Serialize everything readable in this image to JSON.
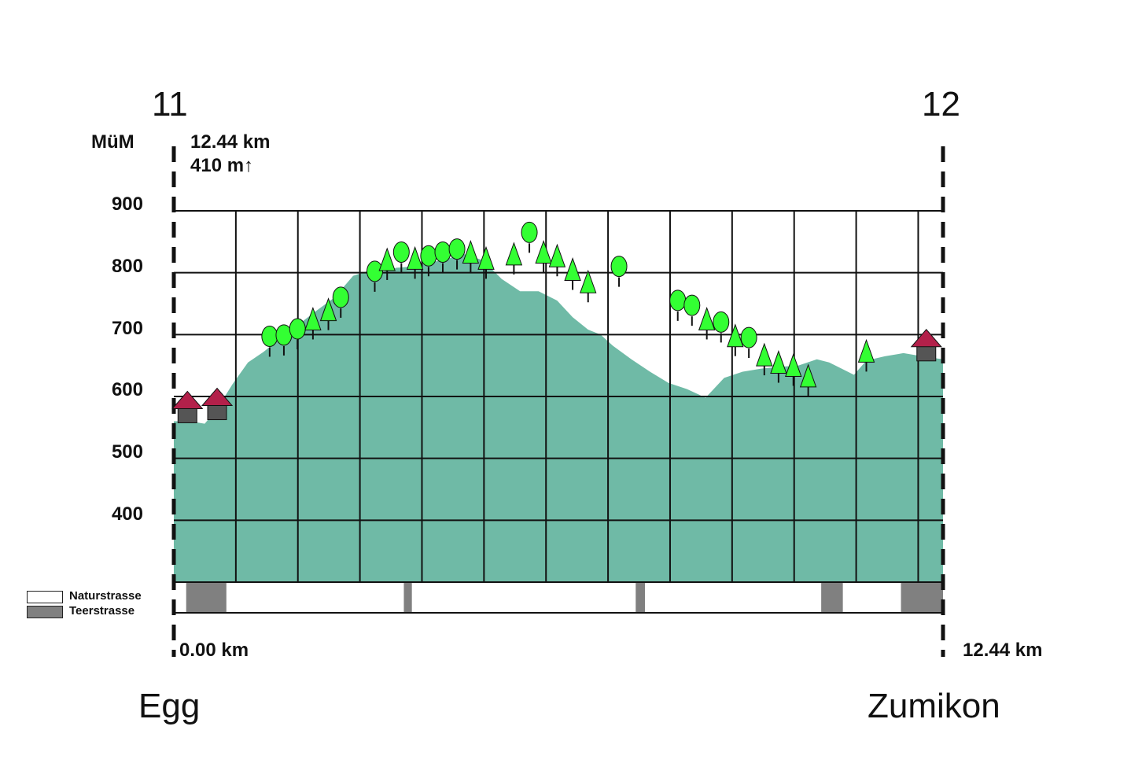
{
  "chart_data": {
    "type": "area",
    "title": "",
    "stage_start": "11",
    "stage_end": "12",
    "ylabel": "MüM",
    "distance_label": "12.44 km",
    "ascent_label": "410 m↑",
    "yticks": [
      "900",
      "800",
      "700",
      "600",
      "500",
      "400"
    ],
    "ylim": [
      300,
      900
    ],
    "xlim": [
      0,
      12.44
    ],
    "x_start_label": "0.00 km",
    "x_end_label": "12.44 km",
    "start_place": "Egg",
    "end_place": "Zumikon",
    "grid": true,
    "profile": {
      "x": [
        0,
        0.25,
        0.5,
        0.7,
        0.95,
        1.2,
        1.45,
        1.7,
        2.0,
        2.3,
        2.6,
        2.9,
        3.15,
        3.4,
        3.6,
        3.85,
        4.1,
        4.4,
        4.7,
        5.0,
        5.3,
        5.6,
        5.9,
        6.2,
        6.45,
        6.7,
        6.9,
        7.1,
        7.4,
        7.7,
        8.0,
        8.3,
        8.6,
        8.9,
        9.2,
        9.5,
        9.8,
        10.1,
        10.4,
        10.6,
        10.8,
        11.0,
        11.2,
        11.5,
        11.8,
        12.1,
        12.44
      ],
      "elevation": [
        560,
        560,
        556,
        580,
        620,
        655,
        672,
        692,
        715,
        738,
        760,
        795,
        803,
        802,
        808,
        810,
        815,
        822,
        830,
        820,
        790,
        770,
        770,
        755,
        728,
        708,
        700,
        682,
        660,
        640,
        622,
        612,
        598,
        630,
        640,
        645,
        648,
        650,
        660,
        655,
        645,
        635,
        658,
        665,
        670,
        665,
        660
      ]
    },
    "road_surface": {
      "legend": [
        "Naturstrasse",
        "Teerstrasse"
      ],
      "teerstrasse_segments_km": [
        [
          0.2,
          0.85
        ],
        [
          3.72,
          3.85
        ],
        [
          7.47,
          7.62
        ],
        [
          10.47,
          10.82
        ],
        [
          11.76,
          12.44
        ]
      ]
    },
    "trees": [
      {
        "km": 1.55,
        "elev": 682,
        "kind": "deciduous"
      },
      {
        "km": 1.78,
        "elev": 684,
        "kind": "deciduous"
      },
      {
        "km": 2.0,
        "elev": 694,
        "kind": "deciduous"
      },
      {
        "km": 2.25,
        "elev": 710,
        "kind": "conifer"
      },
      {
        "km": 2.5,
        "elev": 725,
        "kind": "conifer"
      },
      {
        "km": 2.7,
        "elev": 745,
        "kind": "deciduous"
      },
      {
        "km": 3.25,
        "elev": 787,
        "kind": "deciduous"
      },
      {
        "km": 3.45,
        "elev": 806,
        "kind": "conifer"
      },
      {
        "km": 3.68,
        "elev": 818,
        "kind": "deciduous"
      },
      {
        "km": 3.9,
        "elev": 808,
        "kind": "conifer"
      },
      {
        "km": 4.12,
        "elev": 812,
        "kind": "deciduous"
      },
      {
        "km": 4.35,
        "elev": 818,
        "kind": "deciduous"
      },
      {
        "km": 4.58,
        "elev": 823,
        "kind": "deciduous"
      },
      {
        "km": 4.8,
        "elev": 818,
        "kind": "conifer"
      },
      {
        "km": 5.05,
        "elev": 808,
        "kind": "conifer"
      },
      {
        "km": 5.5,
        "elev": 815,
        "kind": "conifer"
      },
      {
        "km": 5.75,
        "elev": 850,
        "kind": "deciduous"
      },
      {
        "km": 5.98,
        "elev": 818,
        "kind": "conifer"
      },
      {
        "km": 6.2,
        "elev": 812,
        "kind": "conifer"
      },
      {
        "km": 6.45,
        "elev": 790,
        "kind": "conifer"
      },
      {
        "km": 6.7,
        "elev": 770,
        "kind": "conifer"
      },
      {
        "km": 7.2,
        "elev": 795,
        "kind": "deciduous"
      },
      {
        "km": 8.15,
        "elev": 740,
        "kind": "deciduous"
      },
      {
        "km": 8.38,
        "elev": 732,
        "kind": "deciduous"
      },
      {
        "km": 8.62,
        "elev": 710,
        "kind": "conifer"
      },
      {
        "km": 8.85,
        "elev": 705,
        "kind": "deciduous"
      },
      {
        "km": 9.08,
        "elev": 683,
        "kind": "conifer"
      },
      {
        "km": 9.3,
        "elev": 680,
        "kind": "deciduous"
      },
      {
        "km": 9.55,
        "elev": 652,
        "kind": "conifer"
      },
      {
        "km": 9.78,
        "elev": 640,
        "kind": "conifer"
      },
      {
        "km": 10.02,
        "elev": 635,
        "kind": "conifer"
      },
      {
        "km": 10.26,
        "elev": 618,
        "kind": "conifer"
      },
      {
        "km": 11.2,
        "elev": 658,
        "kind": "conifer"
      }
    ],
    "houses": [
      {
        "km": 0.22,
        "elev": 560
      },
      {
        "km": 0.7,
        "elev": 565
      },
      {
        "km": 12.17,
        "elev": 660
      }
    ]
  }
}
